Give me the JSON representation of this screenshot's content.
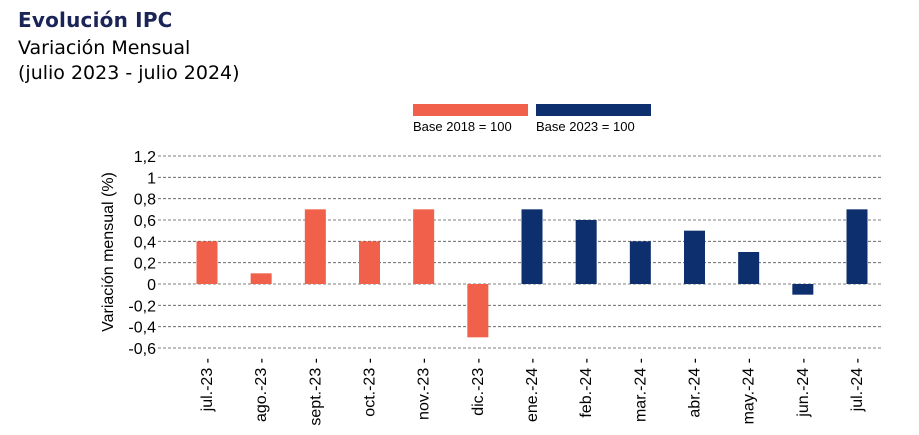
{
  "header": {
    "title": "Evolución IPC",
    "subtitle": "Variación Mensual",
    "period": "(julio 2023 - julio 2024)"
  },
  "chart_data": {
    "type": "bar",
    "title": "Evolución IPC",
    "ylabel": "Variación mensual (%)",
    "xlabel": "",
    "ylim": [
      -0.6,
      1.2
    ],
    "yticks": [
      1.2,
      1.0,
      0.8,
      0.6,
      0.4,
      0.2,
      0,
      -0.2,
      -0.4,
      -0.6
    ],
    "ytick_labels": [
      "1,2",
      "1",
      "0,8",
      "0,6",
      "0,4",
      "0,2",
      "0",
      "-0,2",
      "-0,4",
      "-0,6"
    ],
    "grid": true,
    "legend_position": "top-center",
    "categories": [
      "jul.-23",
      "ago.-23",
      "sept.-23",
      "oct.-23",
      "nov.-23",
      "dic.-23",
      "ene.-24",
      "feb.-24",
      "mar.-24",
      "abr.-24",
      "may.-24",
      "jun.-24",
      "jul.-24"
    ],
    "series": [
      {
        "name": "Base 2018 = 100",
        "color": "#f0604a",
        "values": [
          0.4,
          0.1,
          0.7,
          0.4,
          0.7,
          -0.5,
          null,
          null,
          null,
          null,
          null,
          null,
          null
        ]
      },
      {
        "name": "Base 2023 = 100",
        "color": "#0d2f6e",
        "values": [
          null,
          null,
          null,
          null,
          null,
          null,
          0.7,
          0.6,
          0.4,
          0.5,
          0.3,
          -0.1,
          0.7
        ]
      }
    ]
  }
}
